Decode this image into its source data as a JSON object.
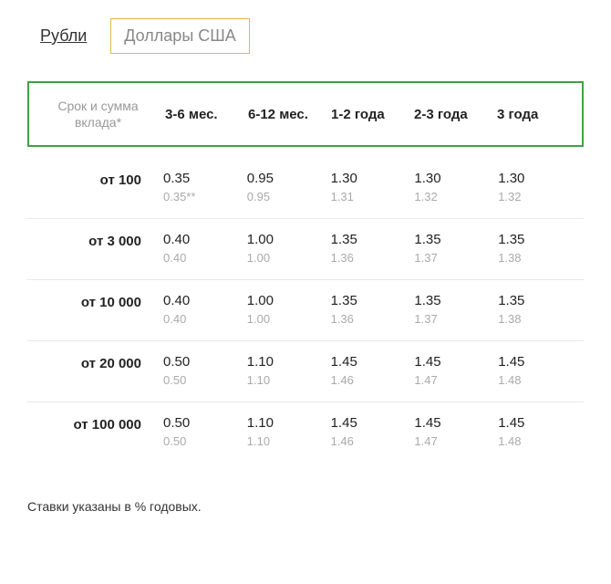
{
  "tabs": {
    "inactive": "Рубли",
    "active": "Доллары США"
  },
  "table": {
    "row_header": "Срок и сумма вклада*",
    "columns": [
      "3-6 мес.",
      "6-12 мес.",
      "1-2 года",
      "2-3 года",
      "3 года"
    ],
    "rows": [
      {
        "label": "от 100",
        "primary": [
          "0.35",
          "0.95",
          "1.30",
          "1.30",
          "1.30"
        ],
        "secondary": [
          "0.35**",
          "0.95",
          "1.31",
          "1.32",
          "1.32"
        ]
      },
      {
        "label": "от 3 000",
        "primary": [
          "0.40",
          "1.00",
          "1.35",
          "1.35",
          "1.35"
        ],
        "secondary": [
          "0.40",
          "1.00",
          "1.36",
          "1.37",
          "1.38"
        ]
      },
      {
        "label": "от 10 000",
        "primary": [
          "0.40",
          "1.00",
          "1.35",
          "1.35",
          "1.35"
        ],
        "secondary": [
          "0.40",
          "1.00",
          "1.36",
          "1.37",
          "1.38"
        ]
      },
      {
        "label": "от 20 000",
        "primary": [
          "0.50",
          "1.10",
          "1.45",
          "1.45",
          "1.45"
        ],
        "secondary": [
          "0.50",
          "1.10",
          "1.46",
          "1.47",
          "1.48"
        ]
      },
      {
        "label": "от 100 000",
        "primary": [
          "0.50",
          "1.10",
          "1.45",
          "1.45",
          "1.45"
        ],
        "secondary": [
          "0.50",
          "1.10",
          "1.46",
          "1.47",
          "1.48"
        ]
      }
    ]
  },
  "footnote": "Ставки указаны в % годовых.",
  "colors": {
    "header_border": "#3fa23f",
    "active_tab_border": "#e6b84a",
    "secondary_text": "#aaaaaa",
    "muted_text": "#999999",
    "divider": "#e8e8e8",
    "background": "#ffffff"
  }
}
